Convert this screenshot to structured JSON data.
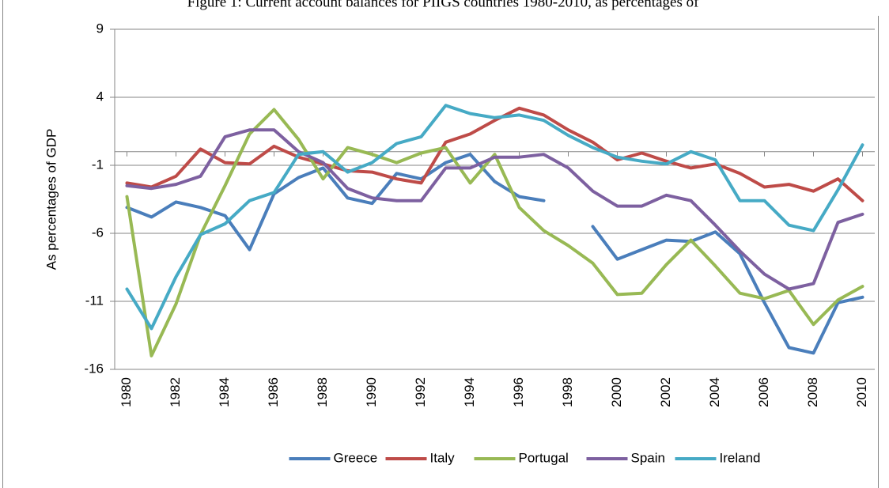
{
  "chart_data": {
    "type": "line",
    "title": "Figure 1: Current account balances for PIIGS countries 1980-2010, as percentages of",
    "y_label": "As percentages of GDP",
    "x": [
      1980,
      1981,
      1982,
      1983,
      1984,
      1985,
      1986,
      1987,
      1988,
      1989,
      1990,
      1991,
      1992,
      1993,
      1994,
      1995,
      1996,
      1997,
      1998,
      1999,
      2000,
      2001,
      2002,
      2003,
      2004,
      2005,
      2006,
      2007,
      2008,
      2009,
      2010
    ],
    "xlim": [
      1979.5,
      2010.5
    ],
    "xticks": [
      1980,
      1982,
      1984,
      1986,
      1988,
      1990,
      1992,
      1994,
      1996,
      1998,
      2000,
      2002,
      2004,
      2006,
      2008,
      2010
    ],
    "ylim": [
      -16,
      9
    ],
    "yticks": [
      9,
      4,
      -1,
      -6,
      -11,
      -16
    ],
    "grid": true,
    "legend": "bottom",
    "series": [
      {
        "name": "Greece",
        "color": "#4a7ebb",
        "values": [
          -4.1,
          -4.8,
          -3.7,
          -4.1,
          -4.7,
          -7.2,
          -3.1,
          -1.9,
          -1.2,
          -3.4,
          -3.8,
          -1.6,
          -2.0,
          -0.8,
          -0.2,
          -2.2,
          -3.3,
          -3.6,
          null,
          -5.5,
          -7.9,
          -7.2,
          -6.5,
          -6.6,
          -5.9,
          -7.5,
          -11.1,
          -14.4,
          -14.8,
          -11.1,
          -10.7
        ]
      },
      {
        "name": "Italy",
        "color": "#be4b48",
        "values": [
          -2.3,
          -2.6,
          -1.8,
          0.2,
          -0.8,
          -0.9,
          0.4,
          -0.4,
          -0.9,
          -1.4,
          -1.5,
          -2.0,
          -2.3,
          0.7,
          1.3,
          2.3,
          3.2,
          2.7,
          1.6,
          0.7,
          -0.6,
          -0.1,
          -0.7,
          -1.2,
          -0.9,
          -1.6,
          -2.6,
          -2.4,
          -2.9,
          -2.0,
          -3.6
        ]
      },
      {
        "name": "Portugal",
        "color": "#98b954",
        "values": [
          -3.3,
          -15.0,
          -11.2,
          -6.1,
          -2.5,
          1.3,
          3.1,
          0.9,
          -2.0,
          0.3,
          -0.2,
          -0.8,
          -0.1,
          0.3,
          -2.3,
          -0.2,
          -4.1,
          -5.8,
          -6.9,
          -8.2,
          -10.5,
          -10.4,
          -8.3,
          -6.5,
          -8.4,
          -10.4,
          -10.8,
          -10.2,
          -12.7,
          -10.9,
          -9.9
        ]
      },
      {
        "name": "Spain",
        "color": "#7d60a0",
        "values": [
          -2.5,
          -2.7,
          -2.4,
          -1.8,
          1.1,
          1.6,
          1.6,
          0.0,
          -0.8,
          -2.7,
          -3.4,
          -3.6,
          -3.6,
          -1.2,
          -1.2,
          -0.4,
          -0.4,
          -0.2,
          -1.2,
          -2.9,
          -4.0,
          -4.0,
          -3.2,
          -3.6,
          -5.4,
          -7.3,
          -9.0,
          -10.1,
          -9.7,
          -5.2,
          -4.6
        ]
      },
      {
        "name": "Ireland",
        "color": "#46aac5",
        "values": [
          -10.1,
          -13.0,
          -9.2,
          -6.1,
          -5.3,
          -3.6,
          -3.0,
          -0.2,
          0.0,
          -1.5,
          -0.8,
          0.6,
          1.1,
          3.4,
          2.8,
          2.5,
          2.7,
          2.3,
          1.2,
          0.3,
          -0.4,
          -0.7,
          -0.9,
          0.0,
          -0.6,
          -3.6,
          -3.6,
          -5.4,
          -5.8,
          -2.8,
          0.5
        ]
      }
    ]
  }
}
